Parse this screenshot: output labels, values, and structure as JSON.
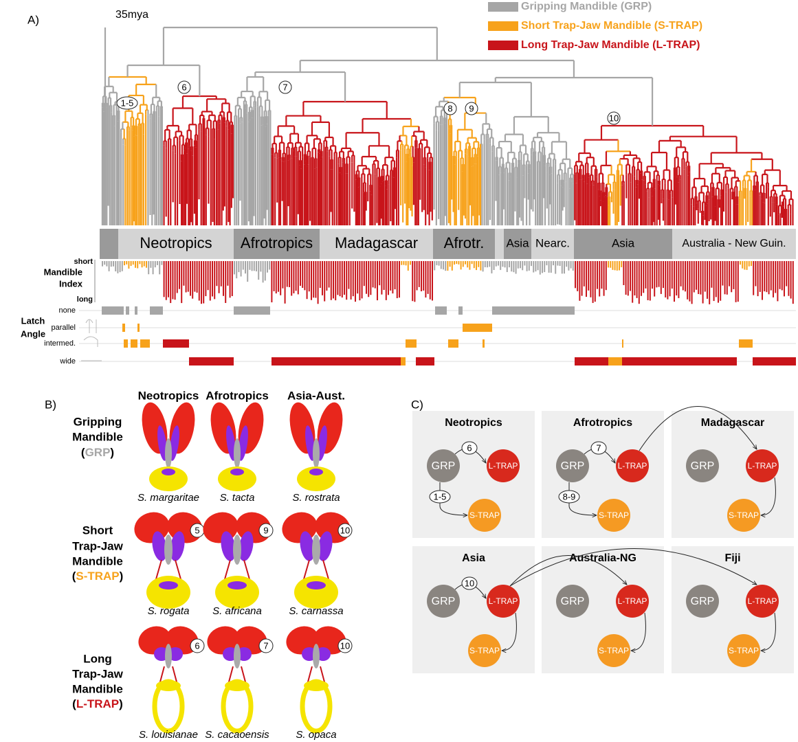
{
  "panel_a": {
    "label": "A)",
    "scale": "35mya",
    "legend": [
      {
        "label": "Gripping Mandible (GRP)",
        "color": "#a6a6a6"
      },
      {
        "label": "Short Trap-Jaw Mandible (S-TRAP)",
        "color": "#f7a21b"
      },
      {
        "label": "Long Trap-Jaw Mandible (L-TRAP)",
        "color": "#c8141a"
      }
    ],
    "nodes": [
      "1-5",
      "6",
      "7",
      "8",
      "9",
      "10"
    ],
    "regions": [
      "Neotropics",
      "Afrotropics",
      "Madagascar",
      "Afrotr.",
      "Asia",
      "Nearc.",
      "Asia",
      "Australia - New Guin."
    ],
    "mandible_index": {
      "title": [
        "Mandible",
        "Index"
      ],
      "short": "short",
      "long": "long"
    },
    "latch_angle": {
      "title": [
        "Latch",
        "Angle"
      ],
      "levels": [
        "none",
        "parallel",
        "intermed.",
        "wide"
      ]
    }
  },
  "panel_b": {
    "label": "B)",
    "columns": [
      "Neotropics",
      "Afrotropics",
      "Asia-Aust."
    ],
    "rows": [
      {
        "title": [
          "Gripping",
          "Mandible"
        ],
        "open": "(",
        "abbr": "GRP",
        "close": ")",
        "species": [
          "S. margaritae",
          "S. tacta",
          "S. rostrata"
        ]
      },
      {
        "title": [
          "Short",
          "Trap-Jaw",
          "Mandible"
        ],
        "open": "(",
        "abbr": "S-TRAP",
        "close": ")",
        "species": [
          "S. rogata",
          "S. africana",
          "S. carnassa"
        ],
        "nodes": [
          "5",
          "9",
          "10"
        ]
      },
      {
        "title": [
          "Long",
          "Trap-Jaw",
          "Mandible"
        ],
        "open": "(",
        "abbr": "L-TRAP",
        "close": ")",
        "species": [
          "S. louisianae",
          "S. cacaoensis",
          "S. opaca"
        ],
        "nodes": [
          "6",
          "7",
          "10"
        ]
      }
    ]
  },
  "panel_c": {
    "label": "C)",
    "boxes": [
      {
        "title": "Neotropics",
        "grp": "GRP",
        "l_trap": "L-TRAP",
        "s_trap": "S-TRAP",
        "edge_l": "6",
        "edge_s": "1-5"
      },
      {
        "title": "Afrotropics",
        "grp": "GRP",
        "l_trap": "L-TRAP",
        "s_trap": "S-TRAP",
        "edge_l": "7",
        "edge_s": "8-9"
      },
      {
        "title": "Madagascar",
        "grp": "GRP",
        "l_trap": "L-TRAP",
        "s_trap": "S-TRAP"
      },
      {
        "title": "Asia",
        "grp": "GRP",
        "l_trap": "L-TRAP",
        "s_trap": "S-TRAP",
        "edge_l": "10"
      },
      {
        "title": "Australia-NG",
        "grp": "GRP",
        "l_trap": "L-TRAP",
        "s_trap": "S-TRAP"
      },
      {
        "title": "Fiji",
        "grp": "GRP",
        "l_trap": "L-TRAP",
        "s_trap": "S-TRAP"
      }
    ]
  }
}
